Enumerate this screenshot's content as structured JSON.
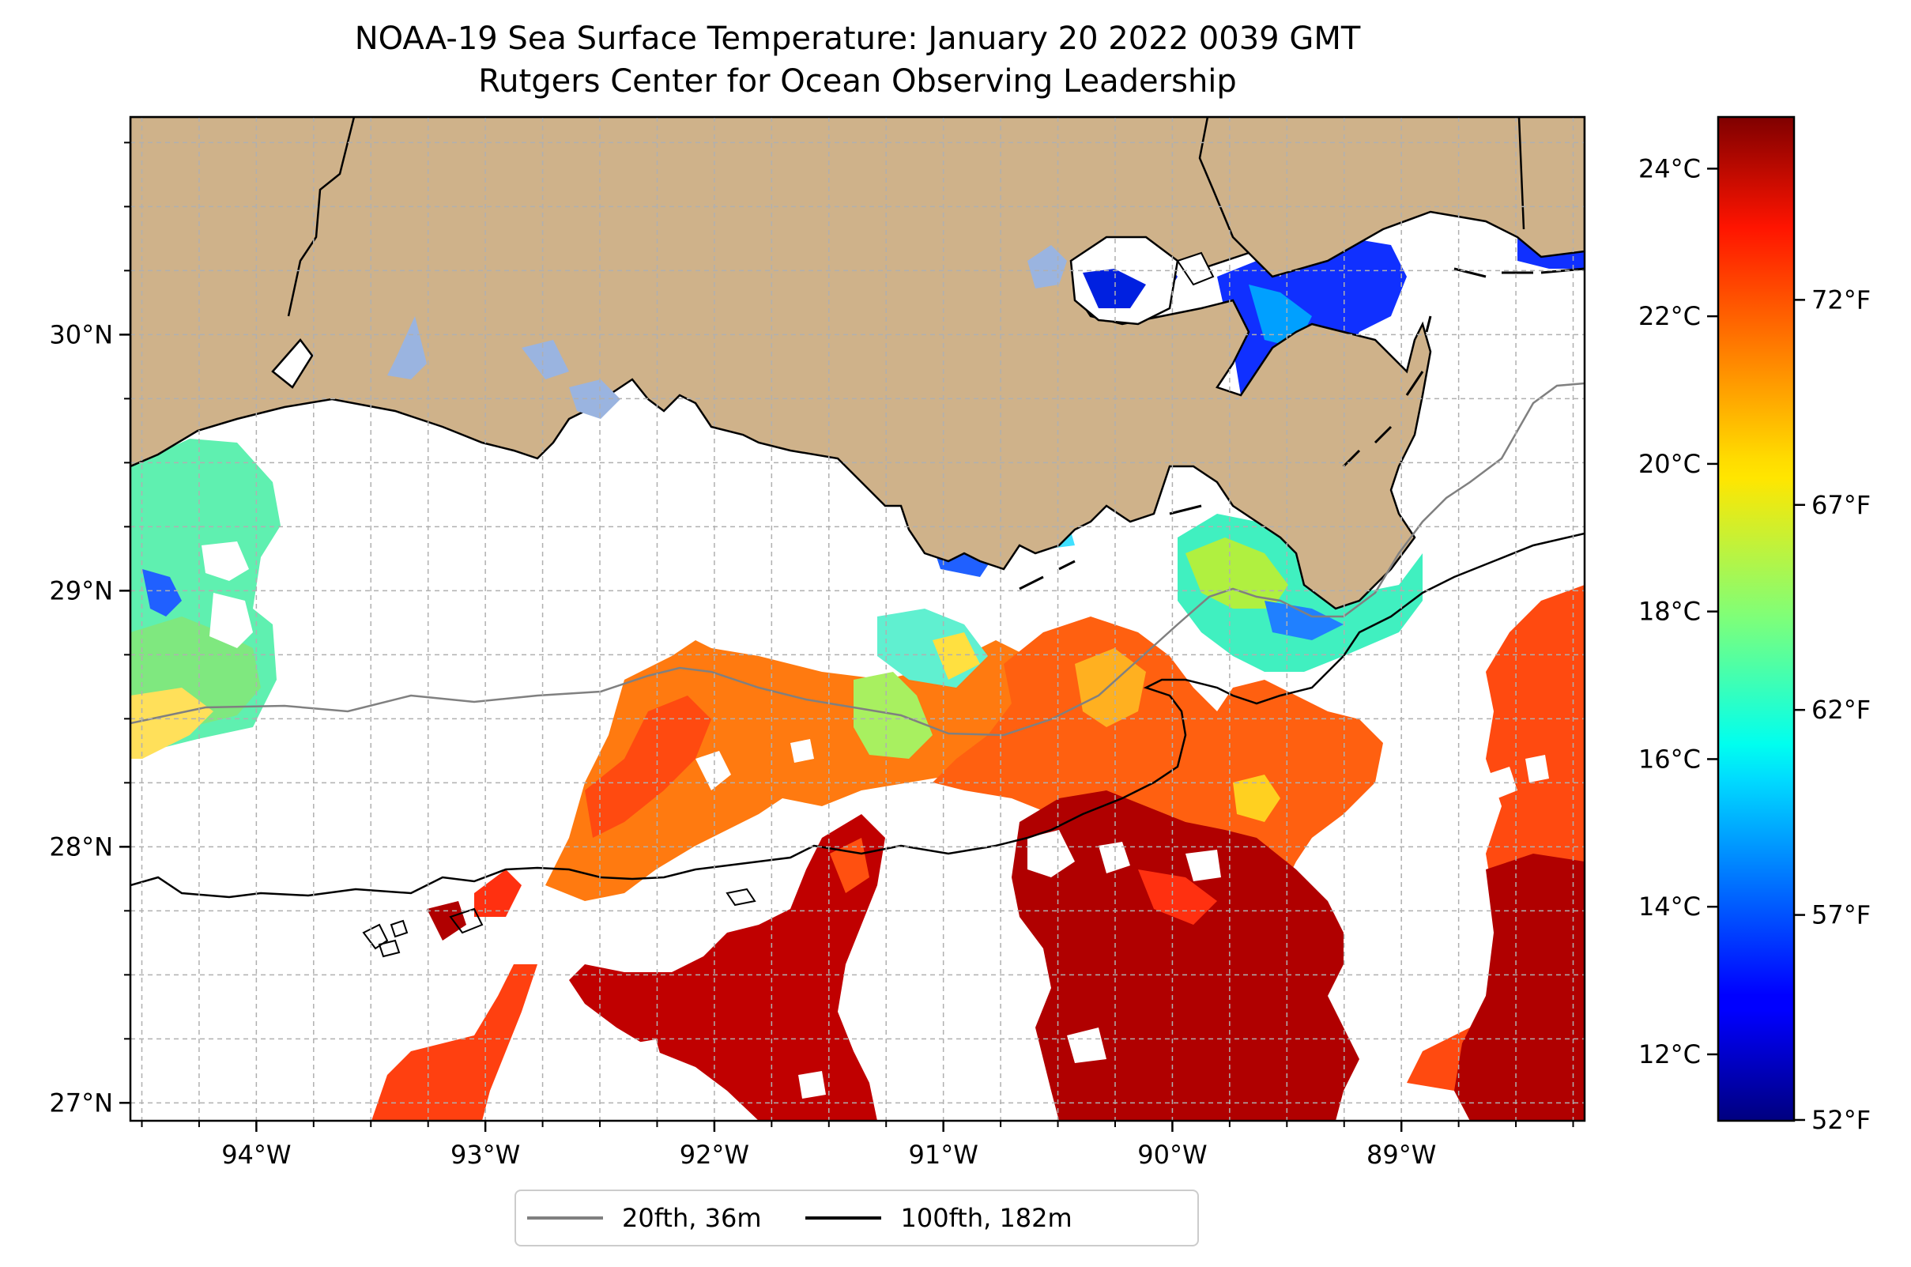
{
  "header": {
    "title": "NOAA-19 Sea Surface Temperature: January 20 2022 0039 GMT",
    "subtitle": "Rutgers Center for Ocean Observing Leadership"
  },
  "map": {
    "lon_range": [
      -94.55,
      -88.2
    ],
    "lat_range": [
      26.93,
      30.85
    ],
    "lon_ticks": [
      "94°W",
      "93°W",
      "92°W",
      "91°W",
      "90°W",
      "89°W"
    ],
    "lon_tick_values": [
      -94,
      -93,
      -92,
      -91,
      -90,
      -89
    ],
    "lat_ticks": [
      "27°N",
      "28°N",
      "29°N",
      "30°N"
    ],
    "lat_tick_values": [
      27,
      28,
      29,
      30
    ],
    "grid": true,
    "land_color": "#cfb28a",
    "lake_color": "#9ab4e0"
  },
  "colorbar": {
    "colormap": "jet",
    "celsius_range": [
      11.1,
      24.7
    ],
    "celsius_ticks": [
      "12°C",
      "14°C",
      "16°C",
      "18°C",
      "20°C",
      "22°C",
      "24°C"
    ],
    "celsius_values": [
      12,
      14,
      16,
      18,
      20,
      22,
      24
    ],
    "fahrenheit_ticks": [
      "52°F",
      "57°F",
      "62°F",
      "67°F",
      "72°F"
    ],
    "fahrenheit_values": [
      52,
      57,
      62,
      67,
      72
    ]
  },
  "legend": {
    "items": [
      {
        "label": "20fth, 36m",
        "color": "#808080"
      },
      {
        "label": "100fth, 182m",
        "color": "#000000"
      }
    ]
  }
}
